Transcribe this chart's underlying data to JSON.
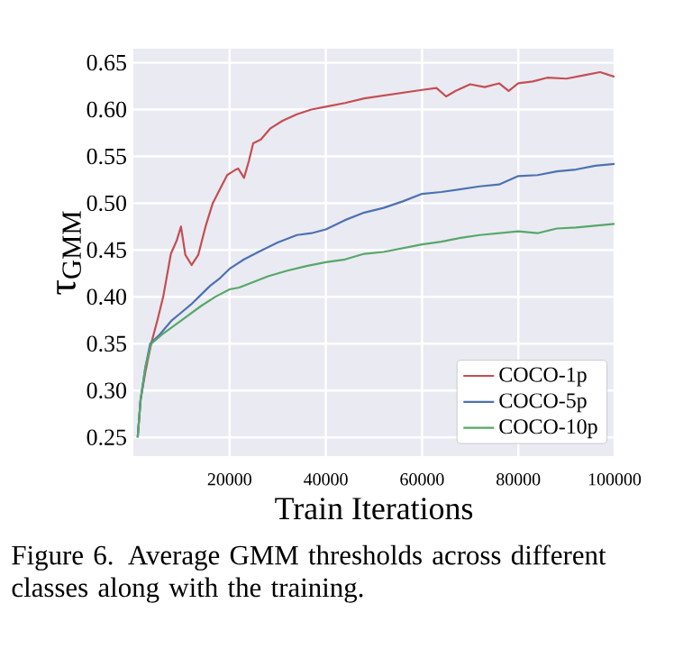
{
  "chart_data": {
    "type": "line",
    "xlabel": "Train Iterations",
    "ylabel": "τ$_{GMM}$",
    "annotations": [
      "Figure 6.  Average GMM thresholds across different classes along with the training."
    ],
    "xlim": [
      0,
      100000
    ],
    "ylim": [
      0.23,
      0.665
    ],
    "xticks": [
      20000,
      40000,
      60000,
      80000,
      100000
    ],
    "yticks": [
      {
        "value": 0.25,
        "label": "0.25"
      },
      {
        "value": 0.3,
        "label": "0.30"
      },
      {
        "value": 0.35,
        "label": "0.35"
      },
      {
        "value": 0.4,
        "label": "0.40"
      },
      {
        "value": 0.45,
        "label": "0.45"
      },
      {
        "value": 0.5,
        "label": "0.50"
      },
      {
        "value": 0.55,
        "label": "0.55"
      },
      {
        "value": 0.6,
        "label": "0.60"
      },
      {
        "value": 0.65,
        "label": "0.65"
      }
    ],
    "grid": true,
    "legend": "bottom right",
    "series": [
      {
        "name": "COCO-1p",
        "color": "#c44e52",
        "x": [
          900,
          1500,
          2500,
          3700,
          5000,
          6200,
          7800,
          9000,
          9900,
          10800,
          12100,
          13500,
          15000,
          16500,
          18000,
          19500,
          21000,
          21800,
          23000,
          24000,
          24900,
          26500,
          28500,
          31000,
          34000,
          37000,
          40000,
          44000,
          48000,
          52000,
          56000,
          60000,
          63000,
          65000,
          67000,
          70000,
          73000,
          76000,
          78000,
          80000,
          83000,
          86000,
          90000,
          94000,
          97000,
          100000
        ],
        "values": [
          0.25,
          0.29,
          0.32,
          0.35,
          0.375,
          0.4,
          0.446,
          0.46,
          0.475,
          0.445,
          0.434,
          0.445,
          0.475,
          0.5,
          0.515,
          0.53,
          0.535,
          0.537,
          0.527,
          0.545,
          0.564,
          0.568,
          0.58,
          0.588,
          0.595,
          0.6,
          0.603,
          0.607,
          0.612,
          0.615,
          0.618,
          0.621,
          0.623,
          0.614,
          0.62,
          0.627,
          0.624,
          0.628,
          0.62,
          0.628,
          0.63,
          0.634,
          0.633,
          0.637,
          0.64,
          0.635
        ]
      },
      {
        "name": "COCO-5p",
        "color": "#4c72b0",
        "x": [
          900,
          1500,
          2500,
          3500,
          5500,
          8000,
          9900,
          12000,
          13600,
          16000,
          18000,
          20000,
          23000,
          26000,
          30000,
          34000,
          37000,
          40000,
          44000,
          48000,
          52000,
          56000,
          60000,
          64000,
          68000,
          72000,
          76000,
          80000,
          84000,
          88000,
          92000,
          96000,
          100000
        ],
        "values": [
          0.25,
          0.29,
          0.325,
          0.35,
          0.36,
          0.375,
          0.383,
          0.392,
          0.4,
          0.412,
          0.42,
          0.43,
          0.44,
          0.448,
          0.458,
          0.466,
          0.468,
          0.472,
          0.482,
          0.49,
          0.495,
          0.502,
          0.51,
          0.512,
          0.515,
          0.518,
          0.52,
          0.529,
          0.53,
          0.534,
          0.536,
          0.54,
          0.542
        ]
      },
      {
        "name": "COCO-10p",
        "color": "#55a868",
        "x": [
          900,
          1500,
          2500,
          3700,
          6000,
          10000,
          14000,
          17000,
          20000,
          22000,
          25000,
          28000,
          32000,
          36000,
          40000,
          44000,
          48000,
          52000,
          56000,
          60000,
          64000,
          68000,
          72000,
          76000,
          80000,
          84000,
          88000,
          92000,
          96000,
          100000
        ],
        "values": [
          0.25,
          0.29,
          0.325,
          0.35,
          0.36,
          0.375,
          0.39,
          0.4,
          0.408,
          0.41,
          0.416,
          0.422,
          0.428,
          0.433,
          0.437,
          0.44,
          0.446,
          0.448,
          0.452,
          0.456,
          0.459,
          0.463,
          0.466,
          0.468,
          0.47,
          0.468,
          0.473,
          0.474,
          0.476,
          0.478
        ]
      }
    ]
  }
}
